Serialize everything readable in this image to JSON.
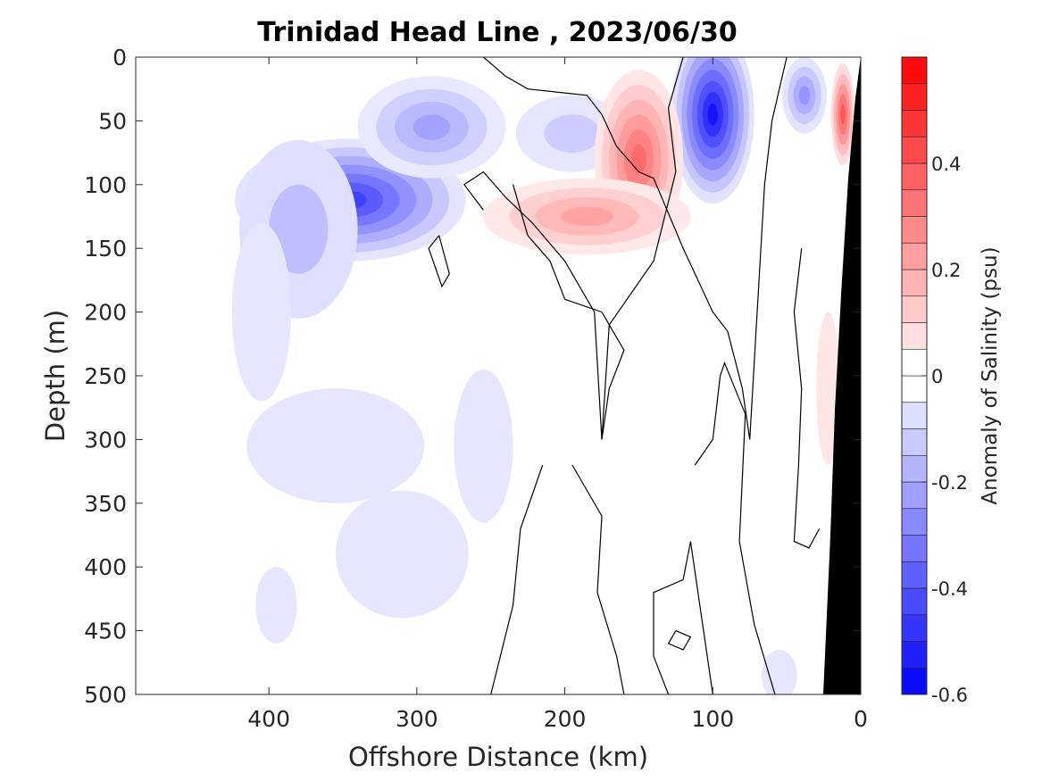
{
  "chart_data": {
    "type": "heatmap",
    "subtype": "filled-contour section",
    "title": "Trinidad Head Line , 2023/06/30",
    "xlabel": "Offshore Distance (km)",
    "ylabel": "Depth (m)",
    "colorbar_label": "Anomaly of Salinity (psu)",
    "xlim": [
      490,
      0
    ],
    "ylim": [
      500,
      0
    ],
    "x_direction": "reversed",
    "y_direction": "reversed",
    "x_ticks": [
      400,
      300,
      200,
      100,
      0
    ],
    "y_ticks": [
      0,
      50,
      100,
      150,
      200,
      250,
      300,
      350,
      400,
      450,
      500
    ],
    "colorbar_range": [
      -0.6,
      0.6
    ],
    "colorbar_ticks": [
      0.4,
      0.2,
      0,
      -0.2,
      -0.4,
      -0.6
    ],
    "colorbar_tick_labels": [
      "0.4",
      "0.2",
      "0",
      "-0.2",
      "-0.4",
      "-0.6"
    ],
    "contour_interval": 0.05,
    "zero_contour_color": "#000000",
    "colormap": {
      "negative_end": "#0000ff",
      "zero": "#ffffff",
      "positive_end": "#ff0000"
    },
    "bathymetry_color": "#000000",
    "grid": false,
    "features": [
      {
        "label": "deep low-salinity core",
        "x": 345,
        "y": 110,
        "value": -0.45
      },
      {
        "label": "nearshore low-salinity core",
        "x": 100,
        "y": 45,
        "value": -0.55
      },
      {
        "label": "mid-shelf high-salinity tongue",
        "x": 150,
        "y": 60,
        "value": 0.35
      },
      {
        "label": "coastal high-salinity patch",
        "x": 12,
        "y": 45,
        "value": 0.4
      }
    ]
  }
}
